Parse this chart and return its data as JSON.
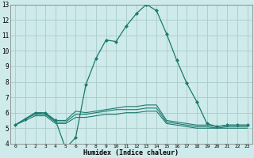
{
  "xlabel": "Humidex (Indice chaleur)",
  "xlim": [
    -0.5,
    23.5
  ],
  "ylim": [
    4,
    13
  ],
  "yticks": [
    4,
    5,
    6,
    7,
    8,
    9,
    10,
    11,
    12,
    13
  ],
  "xtick_labels": [
    "0",
    "1",
    "2",
    "3",
    "4",
    "5",
    "6",
    "7",
    "8",
    "9",
    "10",
    "11",
    "12",
    "13",
    "14",
    "15",
    "16",
    "17",
    "18",
    "19",
    "20",
    "21",
    "22",
    "23"
  ],
  "xtick_positions": [
    0,
    1,
    2,
    3,
    4,
    5,
    6,
    7,
    8,
    9,
    10,
    11,
    12,
    13,
    14,
    15,
    16,
    17,
    18,
    19,
    20,
    21,
    22,
    23
  ],
  "bg_color": "#ceeaea",
  "grid_color": "#aacccc",
  "line_color": "#1a7a6e",
  "lines": [
    {
      "x": [
        0,
        1,
        2,
        3,
        4,
        5,
        6,
        7,
        8,
        9,
        10,
        11,
        12,
        13,
        14,
        15,
        16,
        17,
        18,
        19,
        20,
        21,
        22,
        23
      ],
      "y": [
        5.2,
        5.6,
        6.0,
        6.0,
        5.5,
        3.7,
        4.4,
        7.8,
        9.5,
        10.7,
        10.6,
        11.6,
        12.4,
        13.0,
        12.6,
        11.1,
        9.4,
        7.9,
        6.7,
        5.3,
        5.1,
        5.2,
        5.2,
        5.2
      ],
      "marker": true
    },
    {
      "x": [
        0,
        1,
        2,
        3,
        4,
        5,
        6,
        7,
        8,
        9,
        10,
        11,
        12,
        13,
        14,
        15,
        16,
        17,
        18,
        19,
        20,
        21,
        22,
        23
      ],
      "y": [
        5.2,
        5.6,
        6.0,
        5.9,
        5.5,
        5.5,
        6.1,
        6.0,
        6.1,
        6.2,
        6.3,
        6.4,
        6.4,
        6.5,
        6.5,
        5.5,
        5.4,
        5.3,
        5.2,
        5.2,
        5.1,
        5.2,
        5.2,
        5.2
      ],
      "marker": false
    },
    {
      "x": [
        0,
        1,
        2,
        3,
        4,
        5,
        6,
        7,
        8,
        9,
        10,
        11,
        12,
        13,
        14,
        15,
        16,
        17,
        18,
        19,
        20,
        21,
        22,
        23
      ],
      "y": [
        5.2,
        5.6,
        5.9,
        5.9,
        5.4,
        5.4,
        5.9,
        5.9,
        6.0,
        6.1,
        6.2,
        6.2,
        6.2,
        6.3,
        6.3,
        5.4,
        5.3,
        5.2,
        5.1,
        5.1,
        5.0,
        5.1,
        5.1,
        5.1
      ],
      "marker": false
    },
    {
      "x": [
        0,
        1,
        2,
        3,
        4,
        5,
        6,
        7,
        8,
        9,
        10,
        11,
        12,
        13,
        14,
        15,
        16,
        17,
        18,
        19,
        20,
        21,
        22,
        23
      ],
      "y": [
        5.2,
        5.5,
        5.8,
        5.8,
        5.3,
        5.3,
        5.7,
        5.7,
        5.8,
        5.9,
        5.9,
        6.0,
        6.0,
        6.1,
        6.1,
        5.3,
        5.2,
        5.1,
        5.0,
        5.0,
        5.0,
        5.0,
        5.0,
        5.0
      ],
      "marker": false
    }
  ]
}
